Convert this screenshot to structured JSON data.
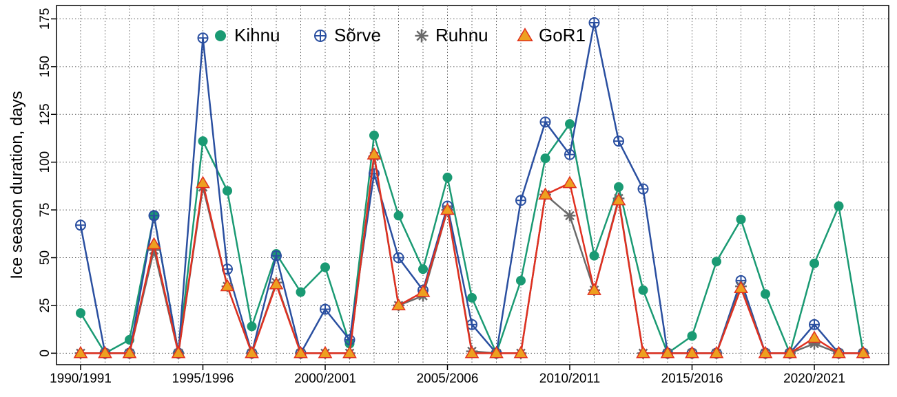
{
  "chart_data": {
    "type": "line",
    "y_label": "Ice season duration, days",
    "categories": [
      "1990/1991",
      null,
      null,
      null,
      null,
      "1995/1996",
      null,
      null,
      null,
      null,
      "2000/2001",
      null,
      null,
      null,
      null,
      "2005/2006",
      null,
      null,
      null,
      null,
      "2010/2011",
      null,
      null,
      null,
      null,
      "2015/2016",
      null,
      null,
      null,
      null,
      "2020/2021",
      null,
      null
    ],
    "series": [
      {
        "name": "Kihnu",
        "color": "#1a9a73",
        "marker": "circle",
        "values": [
          21,
          0,
          7,
          72,
          0,
          111,
          85,
          14,
          52,
          32,
          45,
          5,
          114,
          72,
          44,
          92,
          29,
          0,
          38,
          102,
          120,
          51,
          87,
          33,
          0,
          9,
          48,
          70,
          31,
          0,
          47,
          77,
          0
        ]
      },
      {
        "name": "Sõrve",
        "color": "#2a4fa0",
        "marker": "circle-plus",
        "values": [
          67,
          0,
          0,
          72,
          0,
          165,
          44,
          0,
          51,
          0,
          23,
          7,
          94,
          50,
          33,
          77,
          15,
          0,
          80,
          121,
          104,
          173,
          111,
          86,
          0,
          0,
          0,
          38,
          0,
          0,
          15,
          0,
          0
        ]
      },
      {
        "name": "Ruhnu",
        "color": "#6a6a6a",
        "marker": "asterisk",
        "values": [
          0,
          0,
          0,
          54,
          0,
          87,
          35,
          0,
          37,
          0,
          0,
          0,
          103,
          25,
          30,
          75,
          1,
          0,
          0,
          83,
          72,
          33,
          81,
          0,
          0,
          0,
          0,
          35,
          0,
          0,
          5,
          0,
          0
        ]
      },
      {
        "name": "GoR1",
        "color": "#e03020",
        "marker": "triangle",
        "marker_fill": "#eda020",
        "values": [
          0,
          0,
          0,
          57,
          0,
          89,
          35,
          0,
          36,
          0,
          0,
          0,
          104,
          25,
          32,
          75,
          0,
          0,
          0,
          83,
          89,
          33,
          80,
          0,
          0,
          0,
          0,
          34,
          0,
          0,
          8,
          0,
          0
        ]
      }
    ],
    "ylim": [
      -6,
      182
    ],
    "yticks": [
      0,
      25,
      50,
      75,
      100,
      125,
      150,
      175
    ],
    "grid": true
  }
}
